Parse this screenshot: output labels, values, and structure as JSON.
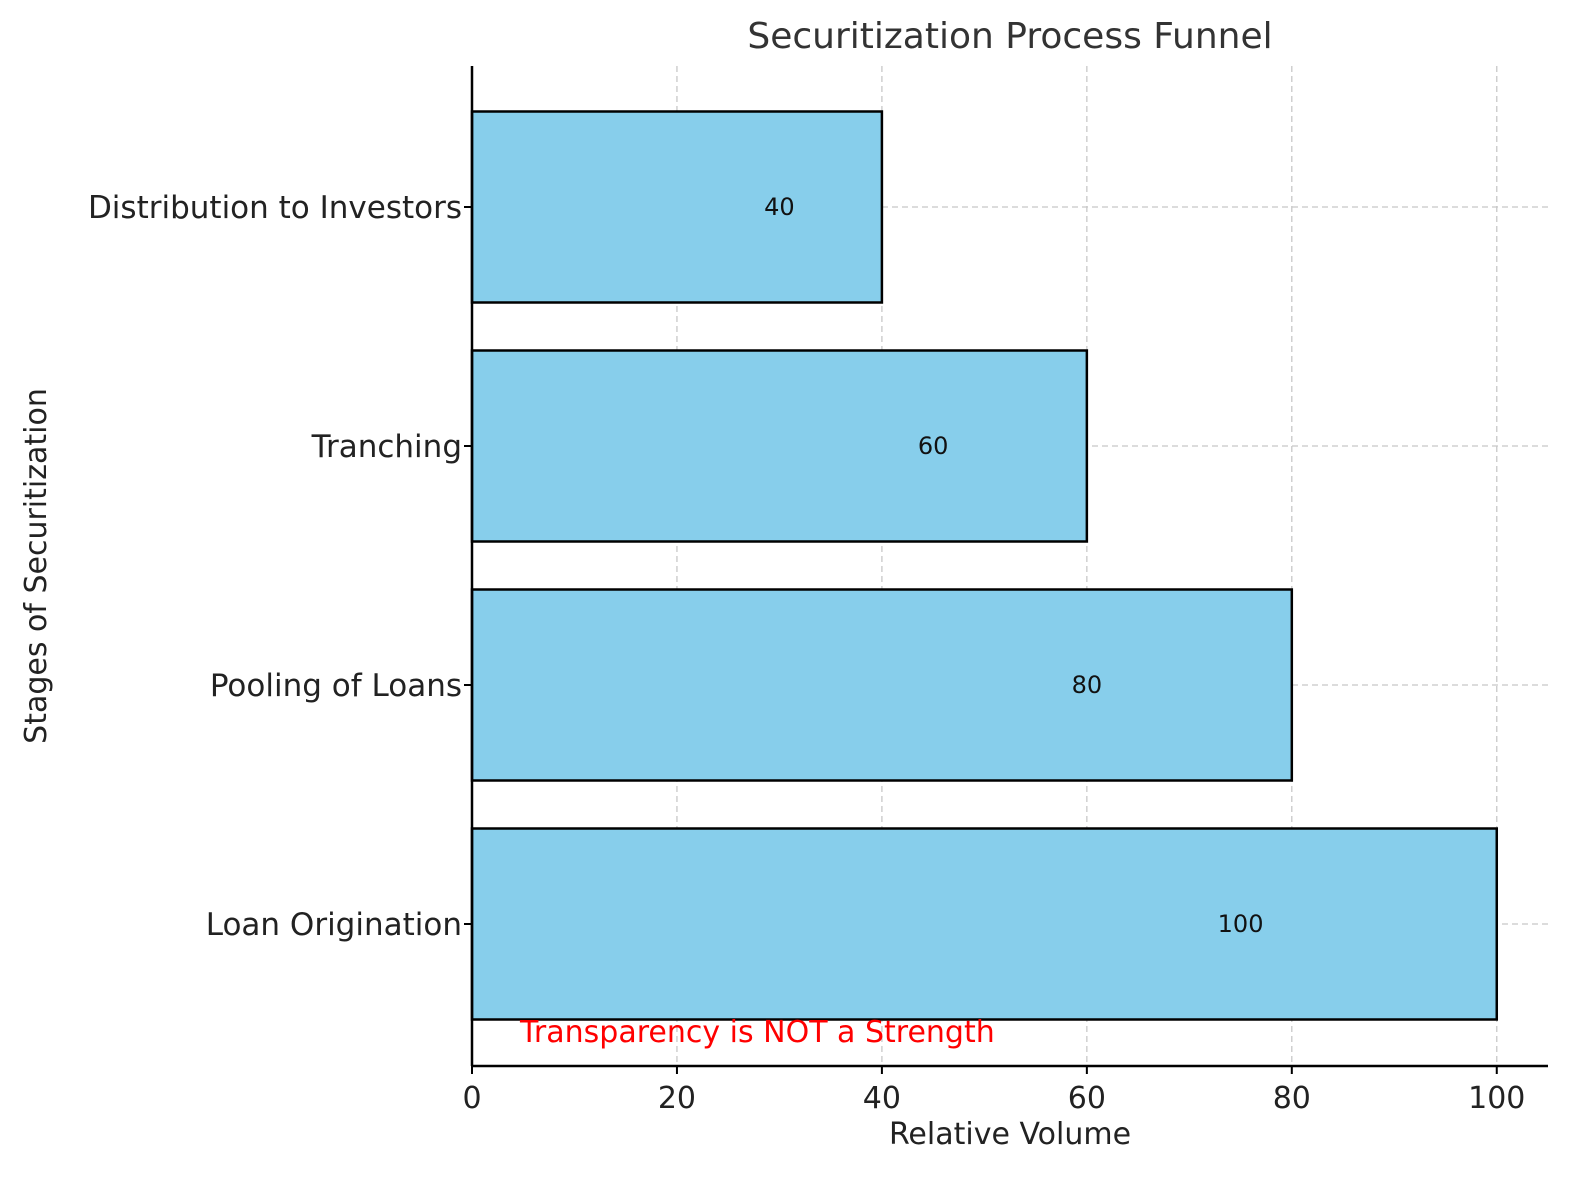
{
  "chart_data": {
    "type": "bar",
    "orientation": "horizontal",
    "title": "Securitization Process Funnel",
    "xlabel": "Relative Volume",
    "ylabel": "Stages of Securitization",
    "categories": [
      "Loan Origination",
      "Pooling of Loans",
      "Tranching",
      "Distribution to Investors"
    ],
    "values": [
      100,
      80,
      60,
      40
    ],
    "value_labels": [
      "100",
      "80",
      "60",
      "40"
    ],
    "xlim": [
      0,
      105
    ],
    "xticks": [
      0,
      20,
      40,
      60,
      80,
      100
    ],
    "xtick_labels": [
      "0",
      "20",
      "40",
      "60",
      "80",
      "100"
    ],
    "grid": true,
    "bar_color": "#87CEEB",
    "bar_edge_color": "#000000",
    "annotation": {
      "text": "Transparency is NOT a Strength",
      "color": "#FF0000"
    }
  }
}
